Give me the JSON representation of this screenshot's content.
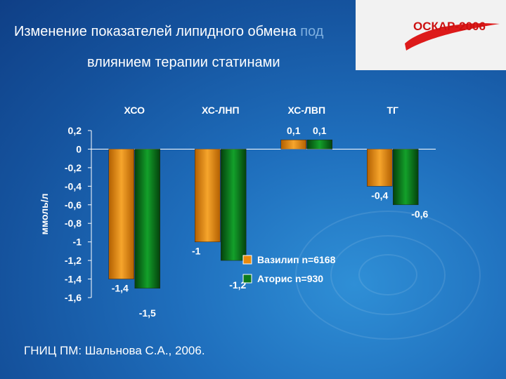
{
  "slide": {
    "title_line1_main": "Изменение показателей липидного обмена",
    "title_line1_faded": " под",
    "title_line2": "влиянием терапии статинами",
    "logo": "ОСКАР-2006",
    "footer": "ГНИЦ ПМ: Шальнова С.А., 2006."
  },
  "colors": {
    "series1": "#e88a0e",
    "series2": "#0c7a1c",
    "text": "#ffffff"
  },
  "chart_data": {
    "type": "bar",
    "categories": [
      "ХСО",
      "ХС-ЛНП",
      "ХС-ЛВП",
      "ТГ"
    ],
    "ylabel": "ммоль/л",
    "ylim": [
      -1.6,
      0.2
    ],
    "yticks": [
      0.2,
      0,
      -0.2,
      -0.4,
      -0.6,
      -0.8,
      -1,
      -1.2,
      -1.4,
      -1.6
    ],
    "ytick_labels": [
      "0,2",
      "0",
      "-0,2",
      "-0,4",
      "-0,6",
      "-0,8",
      "-1",
      "-1,2",
      "-1,4",
      "-1,6"
    ],
    "series": [
      {
        "name": "Вазилип n=6168",
        "values": [
          -1.4,
          -1.0,
          0.1,
          -0.4
        ],
        "labels": [
          "-1,4",
          "-1",
          "0,1",
          "-0,4"
        ]
      },
      {
        "name": "Аторис n=930",
        "values": [
          -1.5,
          -1.2,
          0.1,
          -0.6
        ],
        "labels": [
          "-1,5",
          "-1,2",
          "0,1",
          "-0,6"
        ]
      }
    ]
  }
}
